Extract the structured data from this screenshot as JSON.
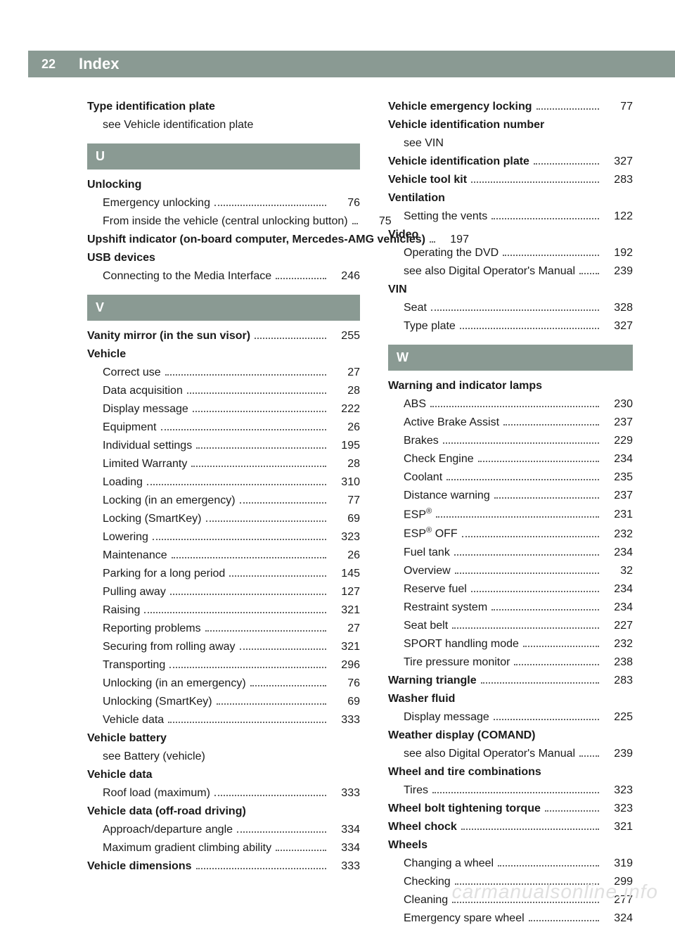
{
  "page_number": "22",
  "header_title": "Index",
  "watermark": "carmanualsonline.info",
  "left": [
    {
      "type": "heading",
      "text": "Type identification plate"
    },
    {
      "type": "sub",
      "text": "see Vehicle identification plate"
    },
    {
      "type": "section",
      "letter": "U"
    },
    {
      "type": "heading",
      "text": "Unlocking"
    },
    {
      "type": "subpage",
      "text": "Emergency unlocking",
      "page": "76"
    },
    {
      "type": "subpage",
      "text": "From inside the vehicle (central unlocking button)",
      "page": "75"
    },
    {
      "type": "headingpage",
      "text": "Upshift indicator (on-board computer, Mercedes-AMG vehicles)",
      "page": "197"
    },
    {
      "type": "heading",
      "text": "USB devices"
    },
    {
      "type": "subpage",
      "text": "Connecting to the Media Interface",
      "page": "246"
    },
    {
      "type": "section",
      "letter": "V"
    },
    {
      "type": "headingpage",
      "text": "Vanity mirror (in the sun visor)",
      "page": "255"
    },
    {
      "type": "heading",
      "text": "Vehicle"
    },
    {
      "type": "subpage",
      "text": "Correct use",
      "page": "27"
    },
    {
      "type": "subpage",
      "text": "Data acquisition",
      "page": "28"
    },
    {
      "type": "subpage",
      "text": "Display message",
      "page": "222"
    },
    {
      "type": "subpage",
      "text": "Equipment",
      "page": "26"
    },
    {
      "type": "subpage",
      "text": "Individual settings",
      "page": "195"
    },
    {
      "type": "subpage",
      "text": "Limited Warranty",
      "page": "28"
    },
    {
      "type": "subpage",
      "text": "Loading",
      "page": "310"
    },
    {
      "type": "subpage",
      "text": "Locking (in an emergency)",
      "page": "77"
    },
    {
      "type": "subpage",
      "text": "Locking (SmartKey)",
      "page": "69"
    },
    {
      "type": "subpage",
      "text": "Lowering",
      "page": "323"
    },
    {
      "type": "subpage",
      "text": "Maintenance",
      "page": "26"
    },
    {
      "type": "subpage",
      "text": "Parking for a long period",
      "page": "145"
    },
    {
      "type": "subpage",
      "text": "Pulling away",
      "page": "127"
    },
    {
      "type": "subpage",
      "text": "Raising",
      "page": "321"
    },
    {
      "type": "subpage",
      "text": "Reporting problems",
      "page": "27"
    },
    {
      "type": "subpage",
      "text": "Securing from rolling away",
      "page": "321"
    },
    {
      "type": "subpage",
      "text": "Transporting",
      "page": "296"
    },
    {
      "type": "subpage",
      "text": "Unlocking (in an emergency)",
      "page": "76"
    },
    {
      "type": "subpage",
      "text": "Unlocking (SmartKey)",
      "page": "69"
    },
    {
      "type": "subpage",
      "text": "Vehicle data",
      "page": "333"
    },
    {
      "type": "heading",
      "text": "Vehicle battery"
    },
    {
      "type": "sub",
      "text": "see Battery (vehicle)"
    },
    {
      "type": "heading",
      "text": "Vehicle data"
    },
    {
      "type": "subpage",
      "text": "Roof load (maximum)",
      "page": "333"
    },
    {
      "type": "heading",
      "text": "Vehicle data (off-road driving)"
    },
    {
      "type": "subpage",
      "text": "Approach/departure angle",
      "page": "334"
    },
    {
      "type": "subpage",
      "text": "Maximum gradient climbing ability",
      "page": "334"
    },
    {
      "type": "headingpage",
      "text": "Vehicle dimensions",
      "page": "333"
    }
  ],
  "right": [
    {
      "type": "headingpage",
      "text": "Vehicle emergency locking",
      "page": "77"
    },
    {
      "type": "heading",
      "text": "Vehicle identification number"
    },
    {
      "type": "sub",
      "text": "see VIN"
    },
    {
      "type": "headingpage",
      "text": "Vehicle identification plate",
      "page": "327"
    },
    {
      "type": "headingpage",
      "text": "Vehicle tool kit",
      "page": "283"
    },
    {
      "type": "heading",
      "text": "Ventilation"
    },
    {
      "type": "subpage",
      "text": "Setting the vents",
      "page": "122"
    },
    {
      "type": "heading",
      "text": "Video"
    },
    {
      "type": "subpage",
      "text": "Operating the DVD",
      "page": "192"
    },
    {
      "type": "subpage",
      "text": "see also Digital Operator's Manual",
      "page": "239"
    },
    {
      "type": "heading",
      "text": "VIN"
    },
    {
      "type": "subpage",
      "text": "Seat",
      "page": "328"
    },
    {
      "type": "subpage",
      "text": "Type plate",
      "page": "327"
    },
    {
      "type": "section",
      "letter": "W"
    },
    {
      "type": "heading",
      "text": "Warning and indicator lamps"
    },
    {
      "type": "subpage",
      "text": "ABS",
      "page": "230"
    },
    {
      "type": "subpage",
      "text": "Active Brake Assist",
      "page": "237"
    },
    {
      "type": "subpage",
      "text": "Brakes",
      "page": "229"
    },
    {
      "type": "subpage",
      "text": "Check Engine",
      "page": "234"
    },
    {
      "type": "subpage",
      "text": "Coolant",
      "page": "235"
    },
    {
      "type": "subpage",
      "text": "Distance warning",
      "page": "237"
    },
    {
      "type": "subpage",
      "html": "ESP<sup>®</sup>",
      "page": "231"
    },
    {
      "type": "subpage",
      "html": "ESP<sup>®</sup> OFF",
      "page": "232"
    },
    {
      "type": "subpage",
      "text": "Fuel tank",
      "page": "234"
    },
    {
      "type": "subpage",
      "text": "Overview",
      "page": "32"
    },
    {
      "type": "subpage",
      "text": "Reserve fuel",
      "page": "234"
    },
    {
      "type": "subpage",
      "text": "Restraint system",
      "page": "234"
    },
    {
      "type": "subpage",
      "text": "Seat belt",
      "page": "227"
    },
    {
      "type": "subpage",
      "text": "SPORT handling mode",
      "page": "232"
    },
    {
      "type": "subpage",
      "text": "Tire pressure monitor",
      "page": "238"
    },
    {
      "type": "headingpage",
      "text": "Warning triangle",
      "page": "283"
    },
    {
      "type": "heading",
      "text": "Washer fluid"
    },
    {
      "type": "subpage",
      "text": "Display message",
      "page": "225"
    },
    {
      "type": "heading",
      "text": "Weather display (COMAND)"
    },
    {
      "type": "subpage",
      "text": "see also Digital Operator's Manual",
      "page": "239"
    },
    {
      "type": "heading",
      "text": "Wheel and tire combinations"
    },
    {
      "type": "subpage",
      "text": "Tires",
      "page": "323"
    },
    {
      "type": "headingpage",
      "text": "Wheel bolt tightening torque",
      "page": "323"
    },
    {
      "type": "headingpage",
      "text": "Wheel chock",
      "page": "321"
    },
    {
      "type": "heading",
      "text": "Wheels"
    },
    {
      "type": "subpage",
      "text": "Changing a wheel",
      "page": "319"
    },
    {
      "type": "subpage",
      "text": "Checking",
      "page": "299"
    },
    {
      "type": "subpage",
      "text": "Cleaning",
      "page": "277"
    },
    {
      "type": "subpage",
      "text": "Emergency spare wheel",
      "page": "324"
    }
  ]
}
